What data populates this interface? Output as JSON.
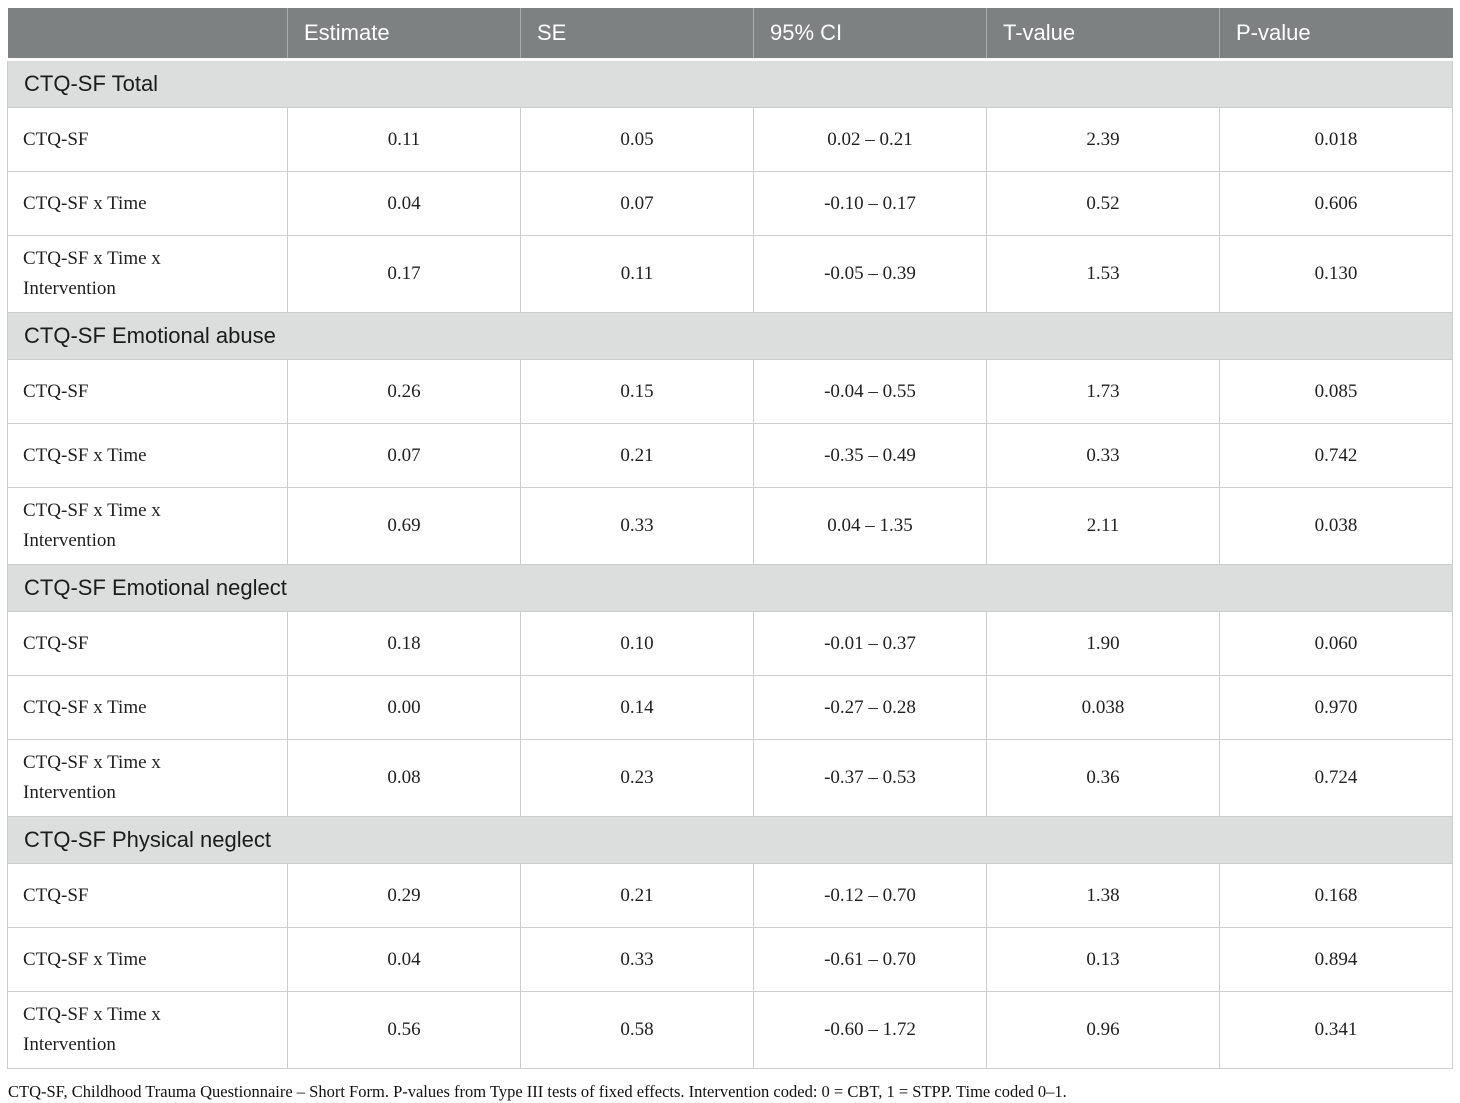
{
  "table": {
    "columns": [
      "",
      "Estimate",
      "SE",
      "95% CI",
      "T-value",
      "P-value"
    ],
    "sections": [
      {
        "title": "CTQ-SF Total",
        "rows": [
          {
            "label": "CTQ-SF",
            "estimate": "0.11",
            "se": "0.05",
            "ci": "0.02 – 0.21",
            "t": "2.39",
            "p": "0.018"
          },
          {
            "label": "CTQ-SF x Time",
            "estimate": "0.04",
            "se": "0.07",
            "ci": "-0.10 – 0.17",
            "t": "0.52",
            "p": "0.606"
          },
          {
            "label": "CTQ-SF x Time x Intervention",
            "estimate": "0.17",
            "se": "0.11",
            "ci": "-0.05 – 0.39",
            "t": "1.53",
            "p": "0.130"
          }
        ]
      },
      {
        "title": "CTQ-SF Emotional abuse",
        "rows": [
          {
            "label": "CTQ-SF",
            "estimate": "0.26",
            "se": "0.15",
            "ci": "-0.04 – 0.55",
            "t": "1.73",
            "p": "0.085"
          },
          {
            "label": "CTQ-SF x Time",
            "estimate": "0.07",
            "se": "0.21",
            "ci": "-0.35 – 0.49",
            "t": "0.33",
            "p": "0.742"
          },
          {
            "label": "CTQ-SF x Time x Intervention",
            "estimate": "0.69",
            "se": "0.33",
            "ci": "0.04 – 1.35",
            "t": "2.11",
            "p": "0.038"
          }
        ]
      },
      {
        "title": "CTQ-SF Emotional neglect",
        "rows": [
          {
            "label": "CTQ-SF",
            "estimate": "0.18",
            "se": "0.10",
            "ci": "-0.01 – 0.37",
            "t": "1.90",
            "p": "0.060"
          },
          {
            "label": "CTQ-SF x Time",
            "estimate": "0.00",
            "se": "0.14",
            "ci": "-0.27 – 0.28",
            "t": "0.038",
            "p": "0.970"
          },
          {
            "label": "CTQ-SF x Time x Intervention",
            "estimate": "0.08",
            "se": "0.23",
            "ci": "-0.37 – 0.53",
            "t": "0.36",
            "p": "0.724"
          }
        ]
      },
      {
        "title": "CTQ-SF Physical neglect",
        "rows": [
          {
            "label": "CTQ-SF",
            "estimate": "0.29",
            "se": "0.21",
            "ci": "-0.12 – 0.70",
            "t": "1.38",
            "p": "0.168"
          },
          {
            "label": "CTQ-SF x Time",
            "estimate": "0.04",
            "se": "0.33",
            "ci": "-0.61 – 0.70",
            "t": "0.13",
            "p": "0.894"
          },
          {
            "label": "CTQ-SF x Time x Intervention",
            "estimate": "0.56",
            "se": "0.58",
            "ci": "-0.60 – 1.72",
            "t": "0.96",
            "p": "0.341"
          }
        ]
      }
    ],
    "footnote": "CTQ-SF, Childhood Trauma Questionnaire – Short Form. P-values from Type III tests of fixed effects. Intervention coded: 0 = CBT, 1 = STPP. Time coded 0–1."
  },
  "colors": {
    "header_bg": "#7e8182",
    "header_text": "#ffffff",
    "section_bg": "#dcdddd",
    "border": "#cdcdcd",
    "text": "#1f1f1f"
  }
}
